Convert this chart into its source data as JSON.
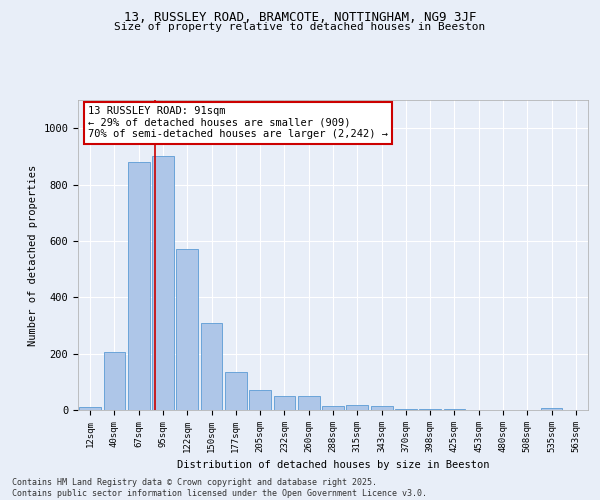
{
  "title1": "13, RUSSLEY ROAD, BRAMCOTE, NOTTINGHAM, NG9 3JF",
  "title2": "Size of property relative to detached houses in Beeston",
  "xlabel": "Distribution of detached houses by size in Beeston",
  "ylabel": "Number of detached properties",
  "categories": [
    "12sqm",
    "40sqm",
    "67sqm",
    "95sqm",
    "122sqm",
    "150sqm",
    "177sqm",
    "205sqm",
    "232sqm",
    "260sqm",
    "288sqm",
    "315sqm",
    "343sqm",
    "370sqm",
    "398sqm",
    "425sqm",
    "453sqm",
    "480sqm",
    "508sqm",
    "535sqm",
    "563sqm"
  ],
  "values": [
    10,
    205,
    880,
    900,
    570,
    310,
    135,
    70,
    50,
    48,
    14,
    18,
    13,
    5,
    3,
    2,
    1,
    0,
    0,
    6,
    0
  ],
  "bar_color": "#aec6e8",
  "bar_edge_color": "#5b9bd5",
  "annotation_text_line1": "13 RUSSLEY ROAD: 91sqm",
  "annotation_text_line2": "← 29% of detached houses are smaller (909)",
  "annotation_text_line3": "70% of semi-detached houses are larger (2,242) →",
  "annotation_box_color": "#ffffff",
  "annotation_box_edge_color": "#cc0000",
  "vline_color": "#cc0000",
  "footer": "Contains HM Land Registry data © Crown copyright and database right 2025.\nContains public sector information licensed under the Open Government Licence v3.0.",
  "ylim": [
    0,
    1100
  ],
  "yticks": [
    0,
    200,
    400,
    600,
    800,
    1000
  ],
  "background_color": "#e8eef8",
  "grid_color": "#ffffff"
}
